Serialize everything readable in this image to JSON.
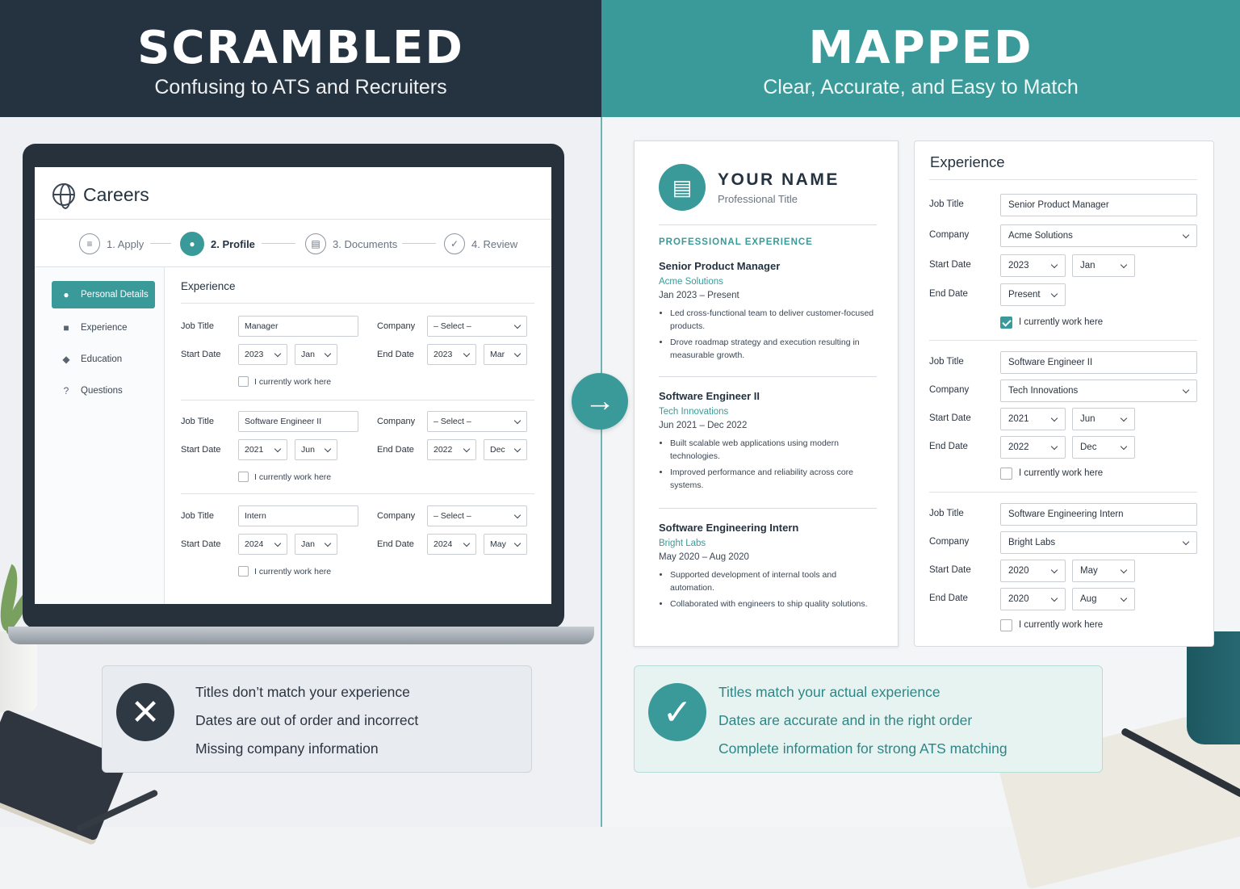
{
  "left_header": {
    "title": "SCRAMBLED",
    "subtitle": "Confusing to ATS and Recruiters"
  },
  "right_header": {
    "title": "MAPPED",
    "subtitle": "Clear, Accurate, and Easy to Match"
  },
  "app": {
    "title": "Careers",
    "steps": [
      {
        "label": "1. Apply",
        "icon": "list-icon"
      },
      {
        "label": "2. Profile",
        "icon": "user-icon"
      },
      {
        "label": "3. Documents",
        "icon": "document-icon"
      },
      {
        "label": "4. Review",
        "icon": "check-icon"
      }
    ],
    "sidebar": [
      {
        "label": "Personal Details",
        "icon": "user-icon"
      },
      {
        "label": "Experience",
        "icon": "briefcase-icon"
      },
      {
        "label": "Education",
        "icon": "graduation-cap-icon"
      },
      {
        "label": "Questions",
        "icon": "question-icon"
      }
    ],
    "section_title": "Experience",
    "labels": {
      "job_title": "Job Title",
      "company": "Company",
      "start_date": "Start Date",
      "end_date": "End Date",
      "current": "I currently work here"
    },
    "entries": [
      {
        "job_title": "Manager",
        "company": "– Select –",
        "start_year": "2023",
        "start_month": "Jan",
        "end_year": "2023",
        "end_month": "Mar"
      },
      {
        "job_title": "Software Engineer II",
        "company": "– Select –",
        "start_year": "2021",
        "start_month": "Jun",
        "end_year": "2022",
        "end_month": "Dec"
      },
      {
        "job_title": "Intern",
        "company": "– Select –",
        "start_year": "2024",
        "start_month": "Jan",
        "end_year": "2024",
        "end_month": "May"
      }
    ]
  },
  "bad_notes": [
    "Titles don’t match your experience",
    "Dates are out of order and incorrect",
    "Missing company information"
  ],
  "good_notes": [
    "Titles match your actual experience",
    "Dates are accurate and in the right order",
    "Complete information for strong ATS matching"
  ],
  "resume": {
    "name": "YOUR NAME",
    "title": "Professional Title",
    "section": "PROFESSIONAL EXPERIENCE",
    "jobs": [
      {
        "title": "Senior Product Manager",
        "company": "Acme Solutions",
        "dates": "Jan 2023 – Present",
        "bullets": [
          "Led cross-functional team to deliver customer-focused products.",
          "Drove roadmap strategy and execution resulting in measurable growth."
        ]
      },
      {
        "title": "Software Engineer II",
        "company": "Tech Innovations",
        "dates": "Jun 2021 – Dec 2022",
        "bullets": [
          "Built scalable web applications using modern technologies.",
          "Improved performance and reliability across core systems."
        ]
      },
      {
        "title": "Software Engineering Intern",
        "company": "Bright Labs",
        "dates": "May 2020 – Aug 2020",
        "bullets": [
          "Supported development of internal tools and automation.",
          "Collaborated with engineers to ship quality solutions."
        ]
      }
    ]
  },
  "panel": {
    "title": "Experience",
    "labels": {
      "job_title": "Job Title",
      "company": "Company",
      "start_date": "Start Date",
      "end_date": "End Date",
      "current": "I currently work here"
    },
    "entries": [
      {
        "job_title": "Senior Product Manager",
        "company": "Acme Solutions",
        "start_year": "2023",
        "start_month": "Jan",
        "end_value": "Present",
        "current": true
      },
      {
        "job_title": "Software Engineer II",
        "company": "Tech Innovations",
        "start_year": "2021",
        "start_month": "Jun",
        "end_year": "2022",
        "end_month": "Dec",
        "current": false
      },
      {
        "job_title": "Software Engineering Intern",
        "company": "Bright Labs",
        "start_year": "2020",
        "start_month": "May",
        "end_year": "2020",
        "end_month": "Aug",
        "current": false
      }
    ]
  },
  "colors": {
    "dark": "#253341",
    "teal": "#3a9a9a"
  }
}
